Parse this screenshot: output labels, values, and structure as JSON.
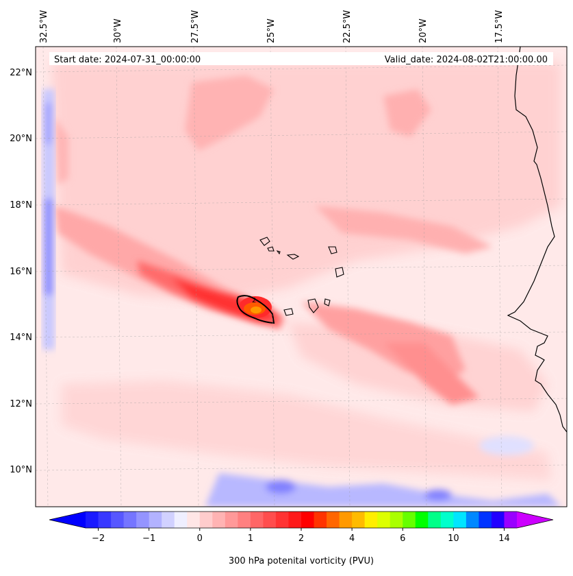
{
  "map": {
    "start_label": "Start date: 2024-07-31_00:00:00",
    "valid_label": "Valid_date: 2024-08-02T21:00:00.00",
    "lon_labels": [
      "32.5°W",
      "30°W",
      "27.5°W",
      "25°W",
      "22.5°W",
      "20°W",
      "17.5°W"
    ],
    "lat_labels": [
      "22°N",
      "20°N",
      "18°N",
      "16°N",
      "14°N",
      "12°N",
      "10°N"
    ],
    "contour_label": "2",
    "field": "300 hPa potential vorticity"
  },
  "colorbar": {
    "label": "300 hPa potenital vorticity (PVU)",
    "ticks": [
      "−2",
      "−1",
      "0",
      "1",
      "2",
      "4",
      "6",
      "10",
      "14"
    ],
    "colors": [
      "#1a1aff",
      "#3838ff",
      "#5757ff",
      "#7575ff",
      "#9494ff",
      "#b2b2ff",
      "#d1d1ff",
      "#efefff",
      "#ffe6e6",
      "#ffcccc",
      "#ffb3b3",
      "#ff9999",
      "#ff8080",
      "#ff6666",
      "#ff4d4d",
      "#ff3333",
      "#ff1a1a",
      "#ff0000",
      "#ff3300",
      "#ff6600",
      "#ff9900",
      "#ffbb00",
      "#ffee00",
      "#ddff00",
      "#aaff00",
      "#66ff00",
      "#00ff00",
      "#00ff88",
      "#00ffcc",
      "#00e5ff",
      "#0088ff",
      "#0033ff",
      "#2200ff",
      "#9900ff"
    ],
    "extend_low": "#0000ff",
    "extend_high": "#cc00ff"
  }
}
